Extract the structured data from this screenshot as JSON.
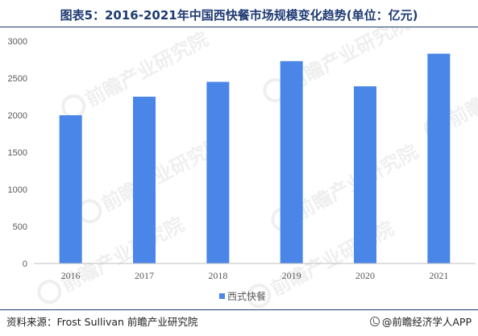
{
  "title": "图表5：2016-2021年中国西快餐市场规模变化趋势(单位：亿元)",
  "source_text": "资料来源：Frost Sullivan 前瞻产业研究院",
  "brand_text": "@前瞻经济学人APP",
  "watermark_text": "前瞻产业研究院",
  "colors": {
    "bar": "#4a86e8",
    "axis": "#bfbfbf",
    "title": "#1f3b73",
    "text": "#595959"
  },
  "chart_data": {
    "type": "bar",
    "categories": [
      "2016",
      "2017",
      "2018",
      "2019",
      "2020",
      "2021"
    ],
    "series": [
      {
        "name": "西式快餐",
        "values": [
          2000,
          2250,
          2450,
          2730,
          2390,
          2830
        ]
      }
    ],
    "ylim": [
      0,
      3000
    ],
    "yticks": [
      0,
      500,
      1000,
      1500,
      2000,
      2500,
      3000
    ],
    "grid": false,
    "legend": "bottom"
  }
}
